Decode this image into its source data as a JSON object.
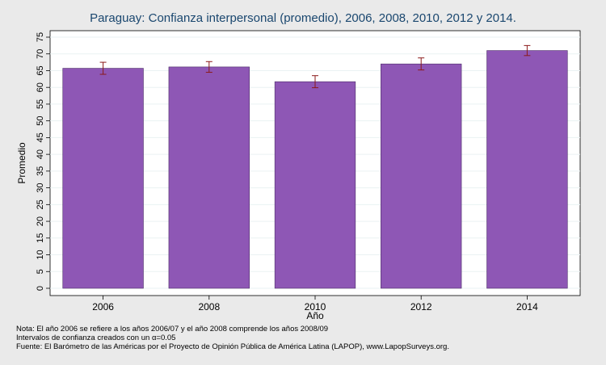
{
  "chart_data": {
    "type": "bar",
    "title": "Paraguay: Confianza interpersonal (promedio), 2006, 2008, 2010, 2012 y 2014.",
    "categories": [
      "2006",
      "2008",
      "2010",
      "2012",
      "2014"
    ],
    "values": [
      65.7,
      66.1,
      61.7,
      67.0,
      71.0
    ],
    "ci_low": [
      63.9,
      64.5,
      59.9,
      65.2,
      69.5
    ],
    "ci_high": [
      67.5,
      67.7,
      63.5,
      68.8,
      72.5
    ],
    "xlabel": "Año",
    "ylabel": "Promedio",
    "ylim": [
      0,
      75
    ],
    "yticks": [
      "0",
      "5",
      "10",
      "15",
      "20",
      "25",
      "30",
      "35",
      "40",
      "45",
      "50",
      "55",
      "60",
      "65",
      "70",
      "75"
    ],
    "grid": true,
    "bar_color": "#8e57b5",
    "errorbar_color": "#8b1a1a"
  },
  "notes": {
    "line1": "Nota: El año 2006 se refiere a los años 2006/07 y el año 2008 comprende los años 2008/09",
    "line2": "Intervalos de confianza creados con un α=0.05",
    "line3": "Fuente: El Barómetro de las Américas por el Proyecto de Opinión Pública de América Latina (LAPOP), www.LapopSurveys.org."
  }
}
